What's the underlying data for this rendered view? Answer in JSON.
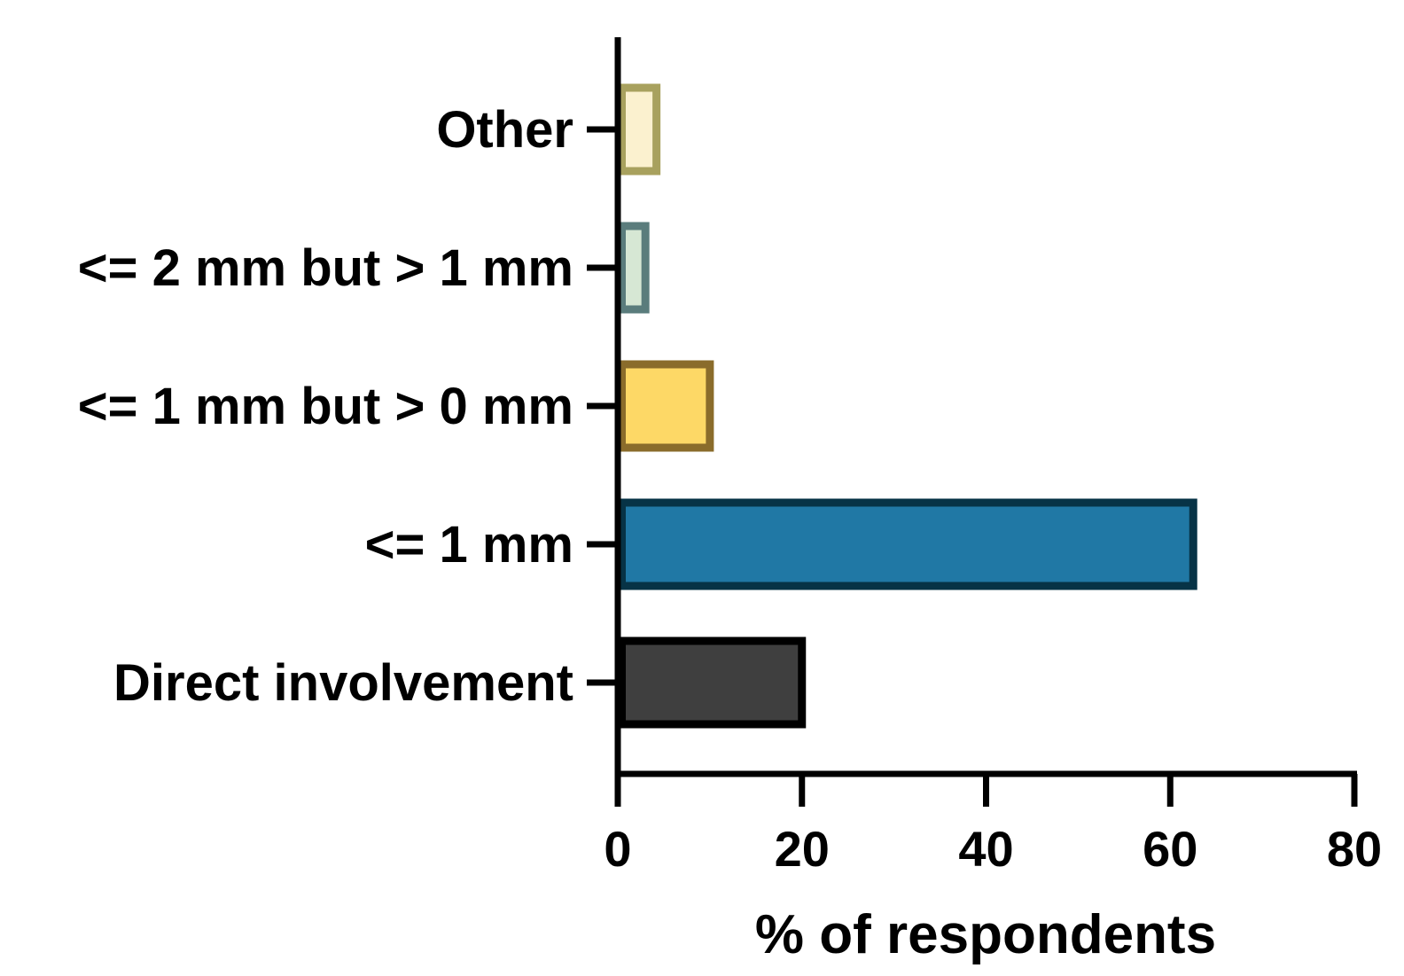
{
  "chart_data": {
    "type": "bar",
    "orientation": "horizontal",
    "categories": [
      "Direct involvement",
      "<= 1 mm",
      "<= 1 mm but > 0 mm",
      "<= 2 mm but > 1 mm",
      "Other"
    ],
    "values": [
      20,
      62.5,
      10,
      3,
      4.2
    ],
    "xlabel": "% of respondents",
    "ylabel": "",
    "xlim": [
      0,
      80
    ],
    "xticks": [
      "0",
      "20",
      "40",
      "60",
      "80"
    ],
    "grid": false,
    "legend": "none",
    "colors": {
      "fills": [
        "#3f3f3f",
        "#2078a5",
        "#fdd866",
        "#d6e7d4",
        "#fbf1cf"
      ],
      "strokes": [
        "#000000",
        "#073346",
        "#8a6c2b",
        "#5a7c7c",
        "#a8a15e"
      ],
      "axis": "#000000"
    }
  }
}
